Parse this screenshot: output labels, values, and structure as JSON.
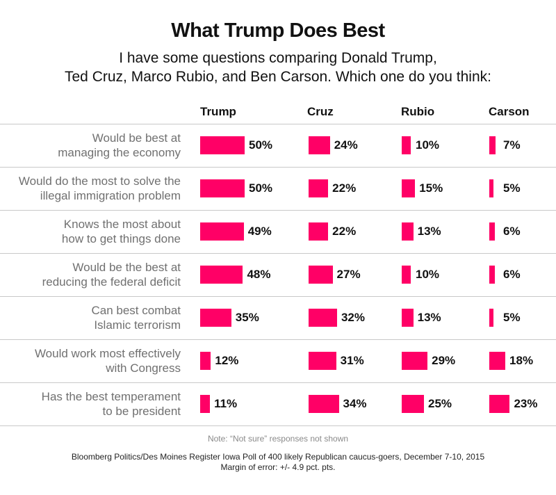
{
  "title": "What Trump Does Best",
  "subtitle_line1": "I have some questions comparing Donald Trump,",
  "subtitle_line2": "Ted Cruz, Marco Rubio, and Ben Carson. Which one do you think:",
  "note": "Note: “Not sure” responses not shown",
  "source_line1": "Bloomberg Politics/Des Moines Register Iowa Poll of 400 likely Republican caucus-goers, December 7-10, 2015",
  "source_line2": "Margin of error: +/- 4.9 pct. pts.",
  "colors": {
    "bar": "#ff0066"
  },
  "chart_data": {
    "type": "bar",
    "columns": [
      "Trump",
      "Cruz",
      "Rubio",
      "Carson"
    ],
    "rows": [
      {
        "label_lines": [
          "Would be best at",
          "managing the economy"
        ],
        "values": [
          50,
          24,
          10,
          7
        ]
      },
      {
        "label_lines": [
          "Would do the most to solve the",
          "illegal immigration problem"
        ],
        "values": [
          50,
          22,
          15,
          5
        ]
      },
      {
        "label_lines": [
          "Knows the most about",
          "how to get things done"
        ],
        "values": [
          49,
          22,
          13,
          6
        ]
      },
      {
        "label_lines": [
          "Would be the best at",
          "reducing the federal deficit"
        ],
        "values": [
          48,
          27,
          10,
          6
        ]
      },
      {
        "label_lines": [
          "Can best combat",
          "Islamic terrorism"
        ],
        "values": [
          35,
          32,
          13,
          5
        ]
      },
      {
        "label_lines": [
          "Would work most effectively",
          "with Congress"
        ],
        "values": [
          12,
          31,
          29,
          18
        ]
      },
      {
        "label_lines": [
          "Has the best temperament",
          "to be president"
        ],
        "values": [
          11,
          34,
          25,
          23
        ]
      }
    ],
    "unit": "%"
  }
}
